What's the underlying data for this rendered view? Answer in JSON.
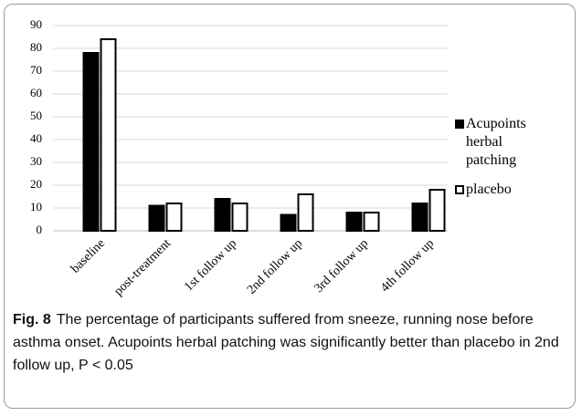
{
  "chart_data": {
    "type": "bar",
    "categories": [
      "baseline",
      "post-treatment",
      "1st follow up",
      "2nd follow up",
      "3rd follow up",
      "4th follow up"
    ],
    "series": [
      {
        "name": "Acupoints herbal patching",
        "color": "#000000",
        "values": [
          78,
          11,
          14,
          7,
          8,
          12
        ]
      },
      {
        "name": "placebo",
        "color": "#ffffff",
        "values": [
          84,
          12,
          12,
          16,
          8,
          18
        ]
      }
    ],
    "ylim": [
      0,
      90
    ],
    "yticks": [
      0,
      10,
      20,
      30,
      40,
      50,
      60,
      70,
      80,
      90
    ],
    "grid": true
  },
  "caption": {
    "label": "Fig. 8",
    "text": "The percentage of participants suffered from sneeze, running nose before asthma onset. Acupoints herbal patching was significantly better than placebo in 2nd follow up, P < 0.05"
  }
}
